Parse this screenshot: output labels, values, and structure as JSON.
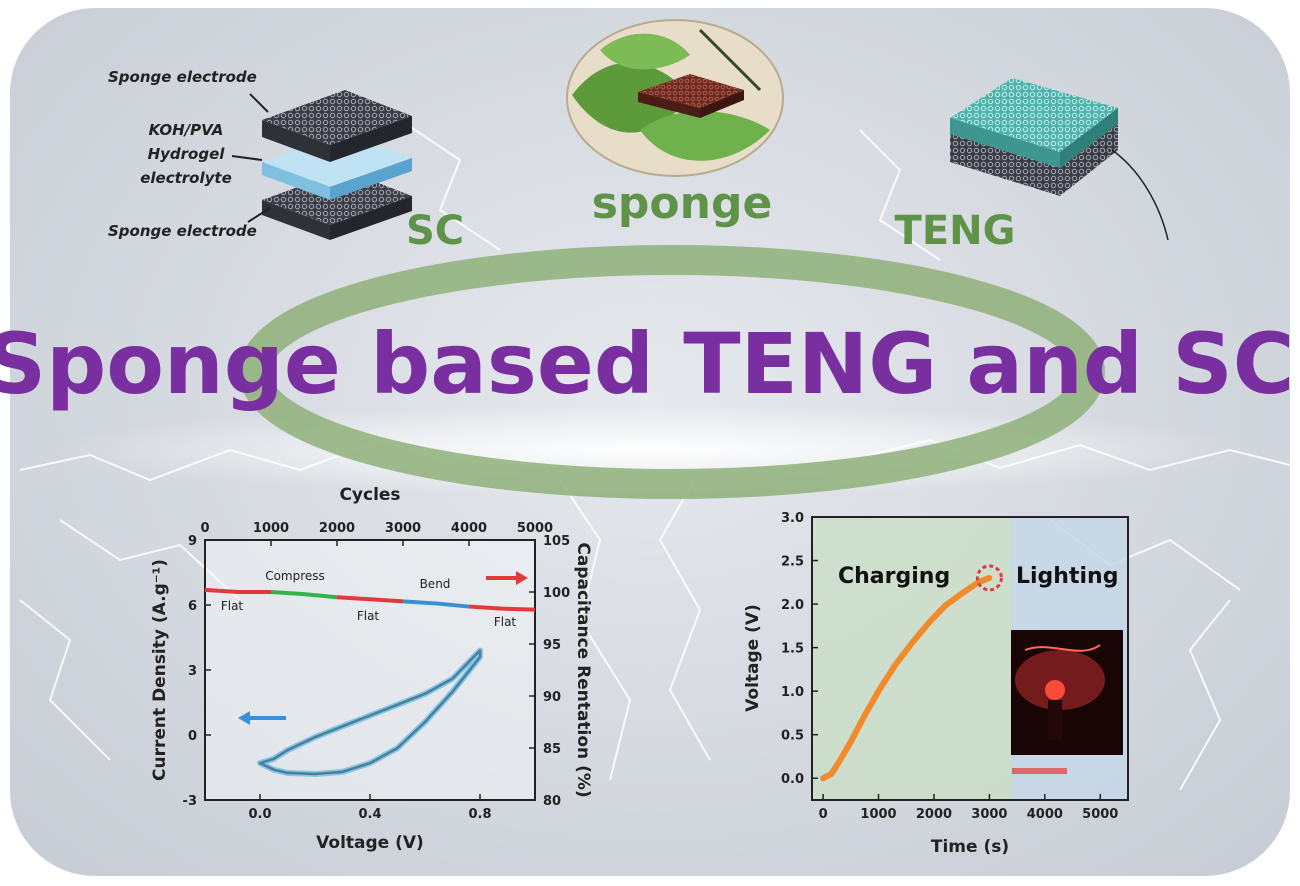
{
  "headline": "Sponge based TENG and SC",
  "labels": {
    "sc": "SC",
    "sponge": "sponge",
    "teng": "TENG",
    "sponge_electrode_top": "Sponge electrode",
    "electrolyte_line1": "KOH/PVA",
    "electrolyte_line2": "Hydrogel",
    "electrolyte_line3": "electrolyte",
    "sponge_electrode_bottom": "Sponge electrode"
  },
  "colors": {
    "headline": "#7a2fa0",
    "green_label": "#5f9347",
    "ring": "#8fb07a",
    "retention_red": "#e23a3a",
    "compress_green": "#2fb34a",
    "bend_blue": "#3b8fd6",
    "cv_curve": "#4a7f9c",
    "charge_curve": "#f08a2a"
  },
  "chart_data": [
    {
      "type": "line",
      "title": "",
      "xlabel": "Voltage (V)",
      "ylabel": "Current Density (A.g⁻¹)",
      "x2label": "Cycles",
      "y2label": "Capacitance Rentation (%)",
      "xlim": [
        -0.2,
        1.0
      ],
      "ylim": [
        -3,
        9
      ],
      "x2lim": [
        0,
        5000
      ],
      "y2lim": [
        80,
        105
      ],
      "xticks": [
        "0.0",
        "0.4",
        "0.8"
      ],
      "yticks": [
        "-3",
        "0",
        "3",
        "6",
        "9"
      ],
      "x2ticks": [
        "0",
        "1000",
        "2000",
        "3000",
        "4000",
        "5000"
      ],
      "y2ticks": [
        "80",
        "85",
        "90",
        "95",
        "100",
        "105"
      ],
      "annotations": [
        "Flat",
        "Compress",
        "Flat",
        "Bend",
        "Flat"
      ],
      "series": [
        {
          "axis": "primary",
          "x": [
            0.0,
            0.05,
            0.1,
            0.2,
            0.3,
            0.4,
            0.5,
            0.6,
            0.7,
            0.8,
            0.8,
            0.7,
            0.6,
            0.5,
            0.4,
            0.3,
            0.2,
            0.1,
            0.05,
            0.0
          ],
          "y": [
            -1.3,
            -1.6,
            -1.75,
            -1.8,
            -1.7,
            -1.3,
            -0.6,
            0.6,
            2.0,
            3.6,
            3.9,
            2.6,
            1.9,
            1.4,
            0.9,
            0.4,
            -0.1,
            -0.7,
            -1.1,
            -1.3
          ]
        },
        {
          "axis": "secondary",
          "x": [
            0,
            500,
            1000,
            1500,
            2000,
            2500,
            3000,
            3500,
            4000,
            4500,
            5000
          ],
          "y": [
            100.2,
            100.0,
            100.0,
            99.8,
            99.5,
            99.3,
            99.1,
            98.9,
            98.6,
            98.4,
            98.3
          ]
        }
      ]
    },
    {
      "type": "line",
      "title": "",
      "xlabel": "Time (s)",
      "ylabel": "Voltage (V)",
      "xlim": [
        -200,
        5500
      ],
      "ylim": [
        -0.25,
        3.0
      ],
      "xticks": [
        "0",
        "1000",
        "2000",
        "3000",
        "4000",
        "5000"
      ],
      "yticks": [
        "0.0",
        "0.5",
        "1.0",
        "1.5",
        "2.0",
        "2.5",
        "3.0"
      ],
      "annotations": [
        "Charging",
        "Lighting"
      ],
      "series": [
        {
          "x": [
            0,
            150,
            300,
            500,
            750,
            1000,
            1300,
            1600,
            1900,
            2200,
            2500,
            2800,
            3000
          ],
          "y": [
            0.0,
            0.05,
            0.2,
            0.42,
            0.72,
            1.0,
            1.3,
            1.55,
            1.78,
            1.98,
            2.12,
            2.25,
            2.3
          ]
        }
      ]
    }
  ]
}
